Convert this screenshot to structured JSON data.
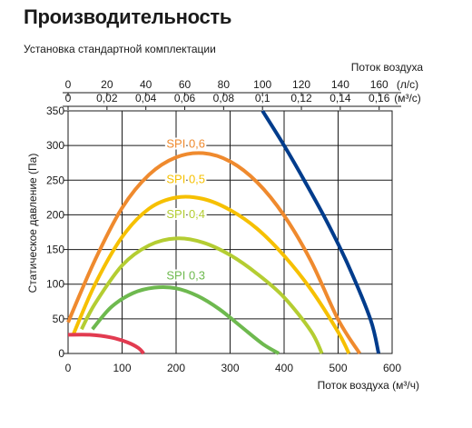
{
  "title": "Производительность",
  "subtitle": "Установка стандартной комплектации",
  "chart_data": {
    "type": "line",
    "xlabel": "Поток воздуха (м³/ч)",
    "ylabel": "Статическое давление (Па)",
    "top_axis_title": "Поток воздуха",
    "xlim": [
      0,
      600
    ],
    "ylim": [
      0,
      350
    ],
    "grid": true,
    "x_ticks": [
      "0",
      "100",
      "200",
      "300",
      "400",
      "500",
      "600"
    ],
    "y_ticks": [
      "0",
      "50",
      "100",
      "150",
      "200",
      "250",
      "300",
      "350"
    ],
    "top_axis_ls": {
      "unit": "(л/с)",
      "ticks": [
        "0",
        "20",
        "40",
        "60",
        "80",
        "100",
        "120",
        "140",
        "160"
      ],
      "m3h_per_unit": 3.6
    },
    "top_axis_m3s": {
      "unit": "(м³/с)",
      "ticks": [
        "0",
        "0,02",
        "0,04",
        "0,06",
        "0,08",
        "0,1",
        "0,12",
        "0,14",
        "0,16"
      ],
      "m3h_per_unit": 3600
    },
    "series": [
      {
        "name": "SPI 0,6",
        "color": "#ef8a2e",
        "label_at": [
          218,
          297
        ],
        "x": [
          0,
          50,
          100,
          150,
          200,
          250,
          300,
          350,
          400,
          450,
          500,
          540
        ],
        "y": [
          45,
          135,
          210,
          258,
          283,
          289,
          277,
          247,
          199,
          133,
          49,
          0
        ]
      },
      {
        "name": "SPI 0,5",
        "color": "#f6c000",
        "label_at": [
          218,
          246
        ],
        "x": [
          10,
          50,
          100,
          150,
          200,
          250,
          300,
          350,
          400,
          450,
          500,
          520
        ],
        "y": [
          28,
          100,
          168,
          209,
          225,
          223,
          207,
          180,
          141,
          92,
          31,
          0
        ]
      },
      {
        "name": "SPI 0,4",
        "color": "#b4cd32",
        "label_at": [
          218,
          195
        ],
        "x": [
          25,
          50,
          100,
          150,
          200,
          250,
          300,
          350,
          400,
          450,
          470
        ],
        "y": [
          35,
          72,
          127,
          156,
          166,
          160,
          142,
          115,
          81,
          32,
          0
        ]
      },
      {
        "name": "SPI 0,3",
        "color": "#6eb94f",
        "label_at": [
          218,
          107
        ],
        "x": [
          45,
          80,
          120,
          160,
          200,
          240,
          280,
          320,
          360,
          390
        ],
        "y": [
          35,
          67,
          87,
          95,
          94,
          83,
          64,
          39,
          14,
          0
        ]
      },
      {
        "color": "#e23b50",
        "x": [
          0,
          40,
          80,
          110,
          130,
          140
        ],
        "y": [
          27,
          27,
          23,
          16,
          8,
          0
        ]
      },
      {
        "color": "#003c8c",
        "x": [
          360,
          400,
          440,
          480,
          520,
          560,
          575
        ],
        "y": [
          350,
          300,
          246,
          189,
          125,
          49,
          0
        ]
      }
    ]
  }
}
